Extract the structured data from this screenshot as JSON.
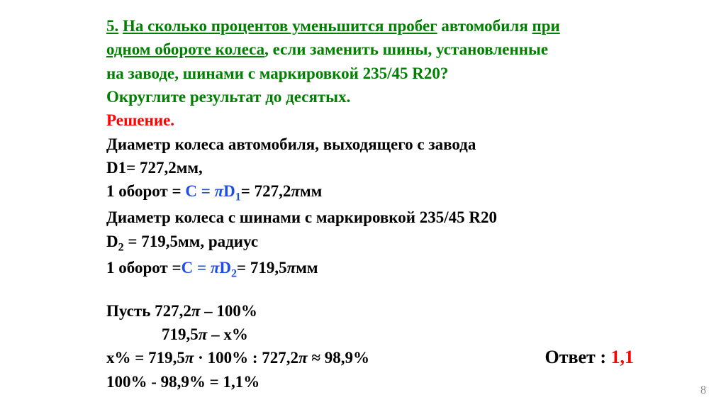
{
  "colors": {
    "green": "#008000",
    "red": "#ff0000",
    "blue": "#1d4eea",
    "black": "#000000",
    "pagenum": "#8a8a8a",
    "background": "#ffffff"
  },
  "problem": {
    "num": "5.",
    "q_part1": "На сколько процентов уменьшится пробег",
    "q_plain1": "автомобиля",
    "q_part2": "при",
    "q_part3": "одном обороте колеса",
    "q_plain2": ", если заменить шины, установленные",
    "q_line3": "на заводе, шинами с маркировкой 235/45 R20?",
    "round": "Округлите результат до десятых."
  },
  "solution": {
    "label": "Решение.",
    "l1": "Диаметр колеса автомобиля, выходящего с завода",
    "l2": " D1= 727,2мм,",
    "l3_a": "1 оборот = ",
    "l3_b": "С = ",
    "l3_c": "D",
    "l3_sub": "1",
    "l3_d": "= 727,2",
    "l3_e": "мм",
    "l4": "Диаметр колеса с  шинами с маркировкой 235/45 R20",
    "l5_a": "D",
    "l5_sub": "2",
    "l5_b": " = 719,5мм, радиус",
    "l6_a": "1 оборот =",
    "l6_b": "С = ",
    "l6_c": "D",
    "l6_sub": "2",
    "l6_d": "= 719,5",
    "l6_e": "мм",
    "p1_a": "Пусть 727,2",
    "p1_b": " – 100%",
    "p2_a": "719,5",
    "p2_b": " – х%",
    "p3_a": "х% = 719,5",
    "p3_b": " · 100% : 727,2",
    "p3_c": " ≈ 98,9%",
    "p4": "100% - 98,9% = 1,1%"
  },
  "answer": {
    "label": "Ответ : ",
    "value": "1,1"
  },
  "page_number": "8",
  "pi_glyph": "π"
}
